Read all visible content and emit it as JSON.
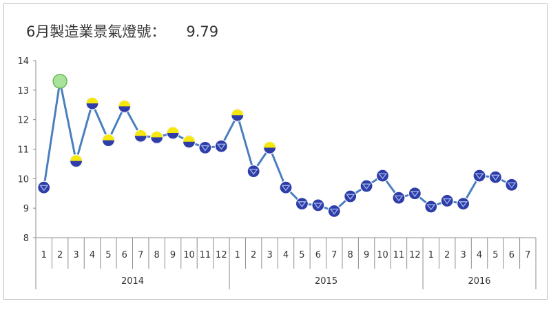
{
  "chart_data": {
    "type": "line",
    "title": "6月製造業景氣燈號：",
    "title_value": "9.79",
    "xlabel": "",
    "ylabel": "",
    "ylim": [
      8,
      14
    ],
    "yticks": [
      8,
      9,
      10,
      11,
      12,
      13,
      14
    ],
    "grid": false,
    "legend": "none",
    "line_color": "#4a7fbf",
    "years": [
      {
        "label": "2014",
        "months": [
          "1",
          "2",
          "3",
          "4",
          "5",
          "6",
          "7",
          "8",
          "9",
          "10",
          "11",
          "12"
        ]
      },
      {
        "label": "2015",
        "months": [
          "1",
          "2",
          "3",
          "4",
          "5",
          "6",
          "7",
          "8",
          "9",
          "10",
          "11",
          "12"
        ]
      },
      {
        "label": "2016",
        "months": [
          "1",
          "2",
          "3",
          "4",
          "5",
          "6",
          "7"
        ]
      }
    ],
    "series": [
      {
        "values": [
          9.7,
          13.3,
          10.6,
          12.55,
          11.3,
          12.45,
          11.45,
          11.4,
          11.55,
          11.25,
          11.05,
          11.1,
          12.15,
          10.25,
          11.05,
          9.7,
          9.15,
          9.1,
          8.9,
          9.4,
          9.75,
          10.1,
          9.35,
          9.5,
          9.05,
          9.25,
          9.15,
          10.1,
          10.05,
          9.79
        ],
        "signals": [
          "blue",
          "green",
          "yellow-blue",
          "yellow-blue",
          "yellow-blue",
          "yellow-blue",
          "yellow-blue",
          "yellow-blue",
          "yellow-blue",
          "yellow-blue",
          "blue",
          "blue",
          "yellow-blue",
          "blue",
          "yellow-blue",
          "blue",
          "blue",
          "blue",
          "blue",
          "blue",
          "blue",
          "blue",
          "blue",
          "blue",
          "blue",
          "blue",
          "blue",
          "blue",
          "blue",
          "blue"
        ]
      }
    ],
    "signal_colors": {
      "blue": "#2e3da8",
      "blue_symbol": "#9fb2e6",
      "yellow": "#f5e70d",
      "green": "#a8e39a",
      "green_edge": "#6cb85a"
    }
  }
}
